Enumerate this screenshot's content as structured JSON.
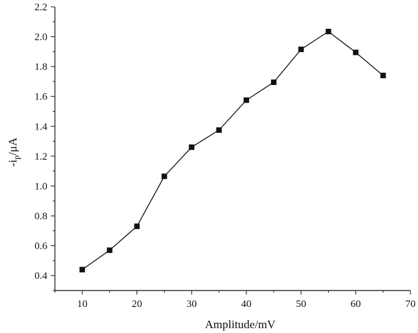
{
  "chart_data": {
    "type": "line",
    "title": "",
    "xlabel": "Amplitude/mV",
    "ylabel_main": "-i",
    "ylabel_subscript": "p",
    "ylabel_suffix": "/μA",
    "xlim": [
      5,
      70
    ],
    "ylim": [
      0.3,
      2.2
    ],
    "x_ticks": [
      10,
      20,
      30,
      40,
      50,
      60,
      70
    ],
    "y_ticks": [
      0.4,
      0.6,
      0.8,
      1.0,
      1.2,
      1.4,
      1.6,
      1.8,
      2.0,
      2.2
    ],
    "x_tick_labels": [
      "10",
      "20",
      "30",
      "40",
      "50",
      "60",
      "70"
    ],
    "y_tick_labels": [
      "0.4",
      "0.6",
      "0.8",
      "1.0",
      "1.2",
      "1.4",
      "1.6",
      "1.8",
      "2.0",
      "2.2"
    ],
    "grid": false,
    "marker": "square",
    "color": "#111111",
    "series": [
      {
        "x": [
          10,
          15,
          20,
          25,
          30,
          35,
          40,
          45,
          50,
          55,
          60,
          65
        ],
        "y": [
          0.44,
          0.57,
          0.73,
          1.065,
          1.26,
          1.375,
          1.575,
          1.695,
          1.915,
          2.035,
          1.895,
          1.74
        ]
      }
    ]
  }
}
